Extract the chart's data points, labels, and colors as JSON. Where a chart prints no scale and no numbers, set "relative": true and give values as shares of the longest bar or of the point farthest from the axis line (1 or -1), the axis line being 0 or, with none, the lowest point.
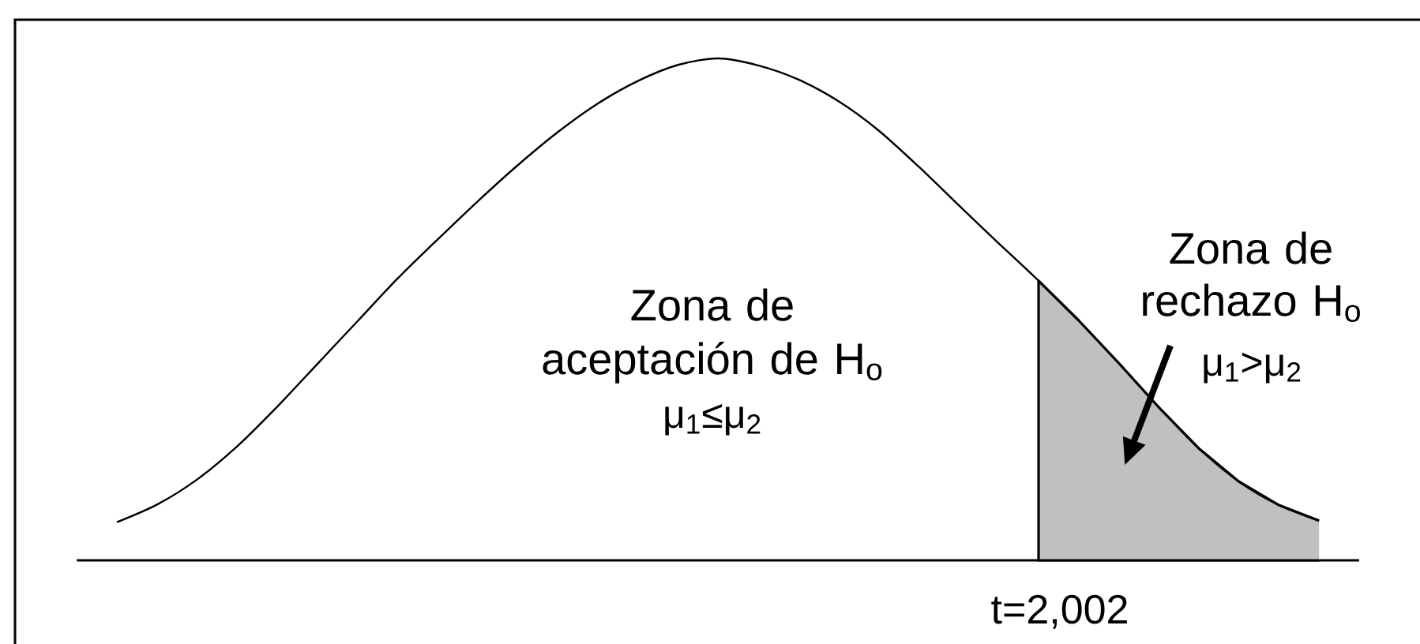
{
  "chart_data": {
    "type": "line",
    "relative": true,
    "categories": [
      null,
      null,
      null,
      null,
      null,
      null,
      null,
      null,
      null,
      null,
      null,
      null,
      null,
      null,
      null,
      null,
      null,
      null,
      null,
      null,
      null,
      null,
      null,
      null,
      null,
      null,
      null,
      null,
      null,
      null,
      null
    ],
    "series": [
      {
        "color": "#000000",
        "values": [
          0.076,
          0.111,
          0.161,
          0.227,
          0.306,
          0.391,
          0.476,
          0.561,
          0.639,
          0.715,
          0.787,
          0.853,
          0.91,
          0.955,
          0.987,
          1.0,
          0.986,
          0.958,
          0.915,
          0.857,
          0.785,
          0.708,
          0.632,
          0.557,
          0.478,
          0.393,
          0.305,
          0.223,
          0.157,
          0.11,
          0.079
        ]
      },
      {
        "type": "area",
        "color": "#c0c0c0",
        "values": [
          null,
          null,
          null,
          null,
          null,
          null,
          null,
          null,
          null,
          null,
          null,
          null,
          null,
          null,
          null,
          null,
          null,
          null,
          null,
          null,
          null,
          null,
          null,
          0.557,
          0.478,
          0.393,
          0.305,
          0.223,
          0.157,
          0.11,
          0.079
        ]
      }
    ],
    "annotations": [
      "Zona de aceptación de H$_{o}$",
      "μ$_{1}$≤μ$_{2}$",
      "Zona de rechazo H$_{o}$",
      "μ$_{1}$>μ$_{2}$",
      "t=2,002"
    ]
  }
}
